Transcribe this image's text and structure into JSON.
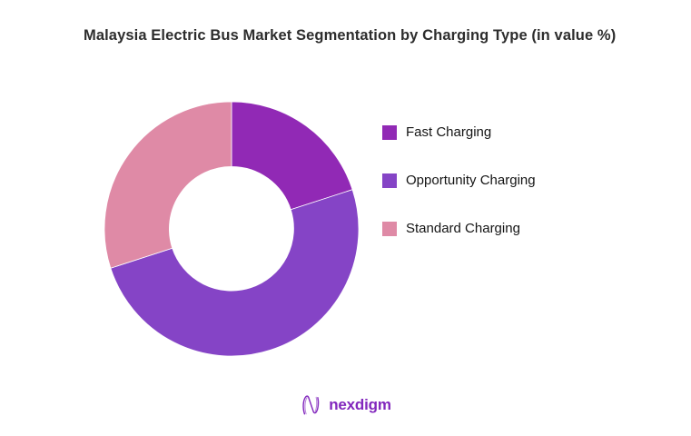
{
  "header": {
    "title": "Malaysia Electric Bus Market Segmentation by Charging Type (in value %)"
  },
  "chart_data": {
    "type": "pie",
    "subtype": "donut",
    "title": "Malaysia Electric Bus Market Segmentation by Charging Type (in value %)",
    "labels": [
      "Fast Charging",
      "Opportunity Charging",
      "Standard Charging"
    ],
    "values": [
      20,
      50,
      30
    ],
    "unit": "value %",
    "colors": [
      "#9129B5",
      "#8544C6",
      "#DF8AA6"
    ],
    "start_angle_deg": 0,
    "direction": "clockwise",
    "inner_radius_ratio": 0.49,
    "legend_position": "right",
    "data_labels_shown": false
  },
  "footer": {
    "logo_text": "nexdigm",
    "logo_color": "#8227bd"
  }
}
